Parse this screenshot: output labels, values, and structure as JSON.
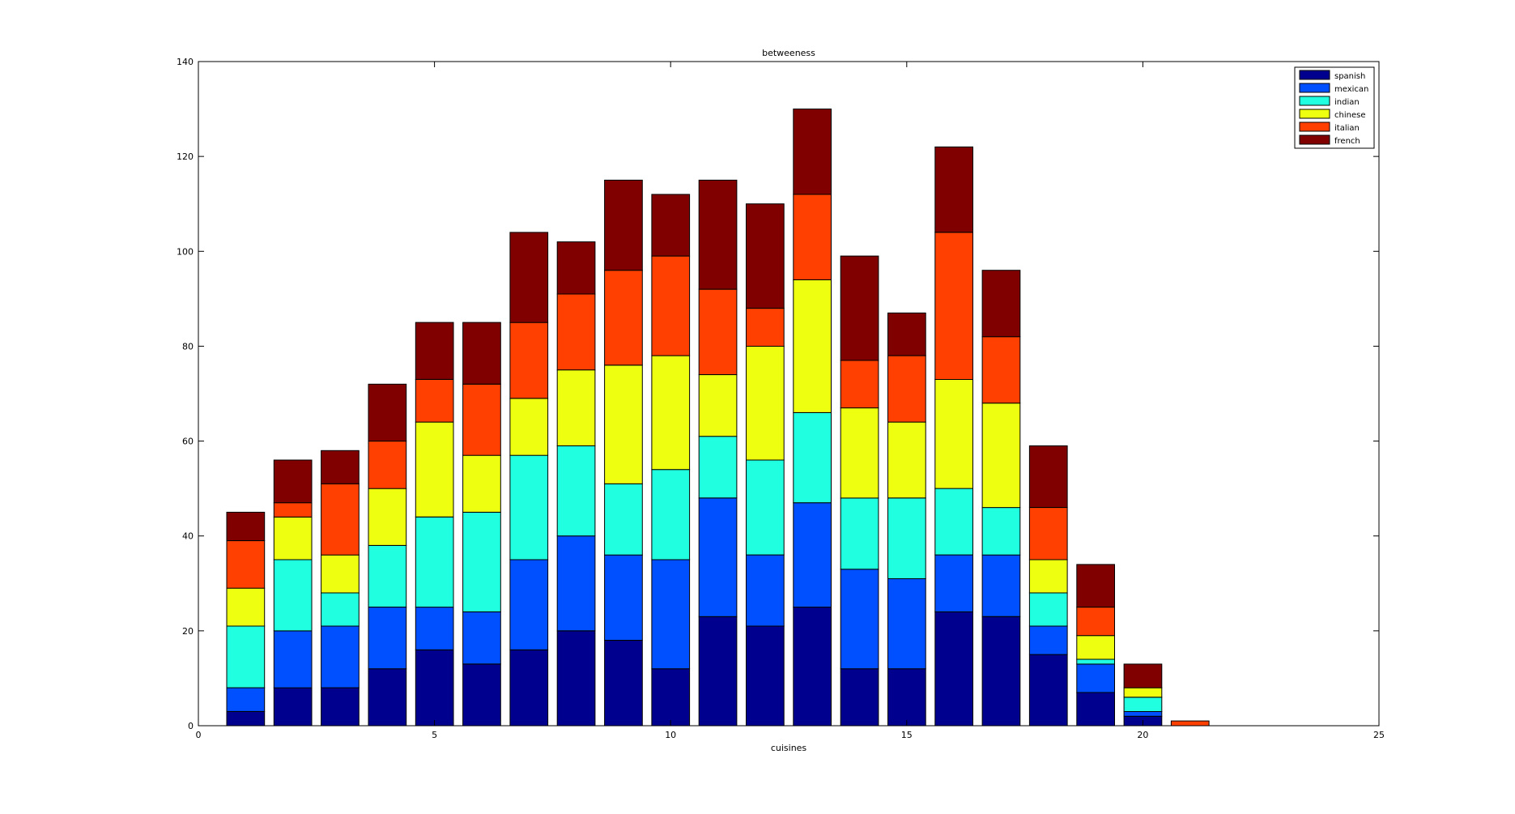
{
  "chart_data": {
    "type": "bar",
    "stacked": true,
    "title": "betweeness",
    "xlabel": "cuisines",
    "ylabel": "",
    "xlim": [
      0,
      25
    ],
    "ylim": [
      0,
      140
    ],
    "xticks": [
      0,
      5,
      10,
      15,
      20,
      25
    ],
    "yticks": [
      0,
      20,
      40,
      60,
      80,
      100,
      120,
      140
    ],
    "grid": false,
    "legend_position": "top-right",
    "categories": [
      1,
      2,
      3,
      4,
      5,
      6,
      7,
      8,
      9,
      10,
      11,
      12,
      13,
      14,
      15,
      16,
      17,
      18,
      19,
      20,
      21
    ],
    "series": [
      {
        "name": "spanish",
        "color": "#00008f",
        "values": [
          3,
          8,
          8,
          12,
          16,
          13,
          16,
          20,
          18,
          12,
          23,
          21,
          25,
          12,
          12,
          24,
          23,
          15,
          7,
          2,
          0
        ]
      },
      {
        "name": "mexican",
        "color": "#0050ff",
        "values": [
          5,
          12,
          13,
          13,
          9,
          11,
          19,
          20,
          18,
          23,
          25,
          15,
          22,
          21,
          19,
          12,
          13,
          6,
          6,
          1,
          0
        ]
      },
      {
        "name": "indian",
        "color": "#20ffdf",
        "values": [
          13,
          15,
          7,
          13,
          19,
          21,
          22,
          19,
          15,
          19,
          13,
          20,
          19,
          15,
          17,
          14,
          10,
          7,
          1,
          3,
          0
        ]
      },
      {
        "name": "chinese",
        "color": "#efff10",
        "values": [
          8,
          9,
          8,
          12,
          20,
          12,
          12,
          16,
          25,
          24,
          13,
          24,
          28,
          19,
          16,
          23,
          22,
          7,
          5,
          2,
          0
        ]
      },
      {
        "name": "italian",
        "color": "#ff4000",
        "values": [
          10,
          3,
          15,
          10,
          9,
          15,
          16,
          16,
          20,
          21,
          18,
          8,
          18,
          10,
          14,
          31,
          14,
          11,
          6,
          0,
          1
        ]
      },
      {
        "name": "french",
        "color": "#800000",
        "values": [
          6,
          9,
          7,
          12,
          12,
          13,
          19,
          11,
          19,
          13,
          23,
          22,
          18,
          22,
          9,
          18,
          14,
          13,
          9,
          5,
          0
        ]
      }
    ]
  }
}
